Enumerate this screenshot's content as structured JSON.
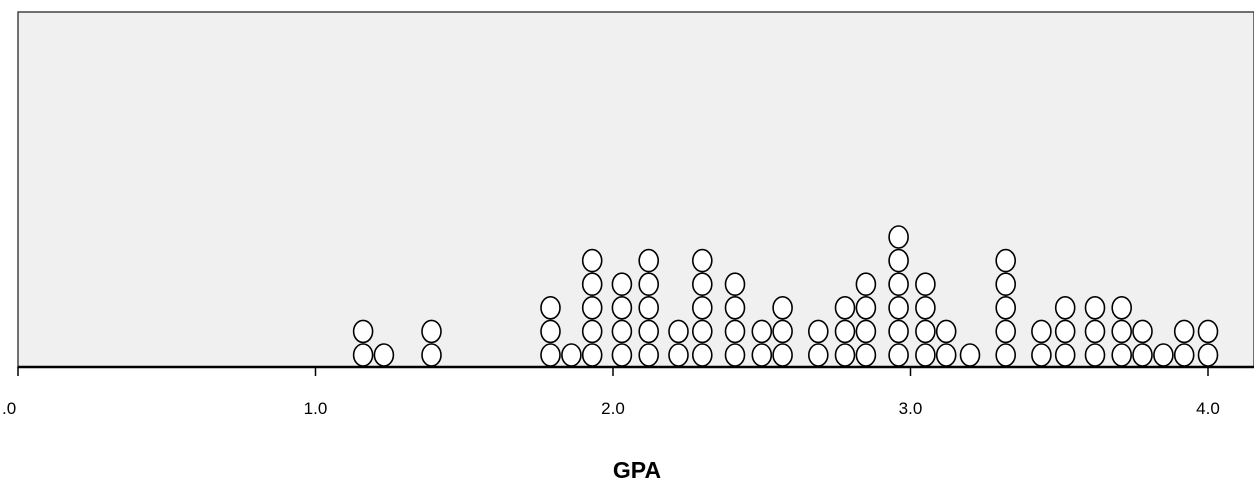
{
  "chart_data": {
    "type": "scatter",
    "subtype": "dot-plot",
    "xlabel": "GPA",
    "xlim": [
      0,
      4.15
    ],
    "ticks": [
      {
        "value": 0,
        "label": ".0"
      },
      {
        "value": 1,
        "label": "1.0"
      },
      {
        "value": 2,
        "label": "2.0"
      },
      {
        "value": 3,
        "label": "3.0"
      },
      {
        "value": 4,
        "label": "4.0"
      }
    ],
    "points": [
      {
        "x": 1.16,
        "count": 2
      },
      {
        "x": 1.23,
        "count": 1
      },
      {
        "x": 1.39,
        "count": 2
      },
      {
        "x": 1.79,
        "count": 3
      },
      {
        "x": 1.86,
        "count": 1
      },
      {
        "x": 1.93,
        "count": 5
      },
      {
        "x": 2.03,
        "count": 4
      },
      {
        "x": 2.12,
        "count": 5
      },
      {
        "x": 2.22,
        "count": 2
      },
      {
        "x": 2.3,
        "count": 5
      },
      {
        "x": 2.41,
        "count": 4
      },
      {
        "x": 2.5,
        "count": 2
      },
      {
        "x": 2.57,
        "count": 3
      },
      {
        "x": 2.69,
        "count": 2
      },
      {
        "x": 2.78,
        "count": 3
      },
      {
        "x": 2.85,
        "count": 4
      },
      {
        "x": 2.96,
        "count": 6
      },
      {
        "x": 3.05,
        "count": 4
      },
      {
        "x": 3.12,
        "count": 2
      },
      {
        "x": 3.2,
        "count": 1
      },
      {
        "x": 3.32,
        "count": 5
      },
      {
        "x": 3.44,
        "count": 2
      },
      {
        "x": 3.52,
        "count": 3
      },
      {
        "x": 3.62,
        "count": 3
      },
      {
        "x": 3.71,
        "count": 3
      },
      {
        "x": 3.78,
        "count": 2
      },
      {
        "x": 3.85,
        "count": 1
      },
      {
        "x": 3.92,
        "count": 2
      },
      {
        "x": 4.0,
        "count": 2
      }
    ],
    "colors": {
      "plot_background": "#f0f0f0",
      "dot_fill": "#ffffff",
      "dot_stroke": "#000000",
      "axis": "#000000"
    },
    "grid": false
  }
}
